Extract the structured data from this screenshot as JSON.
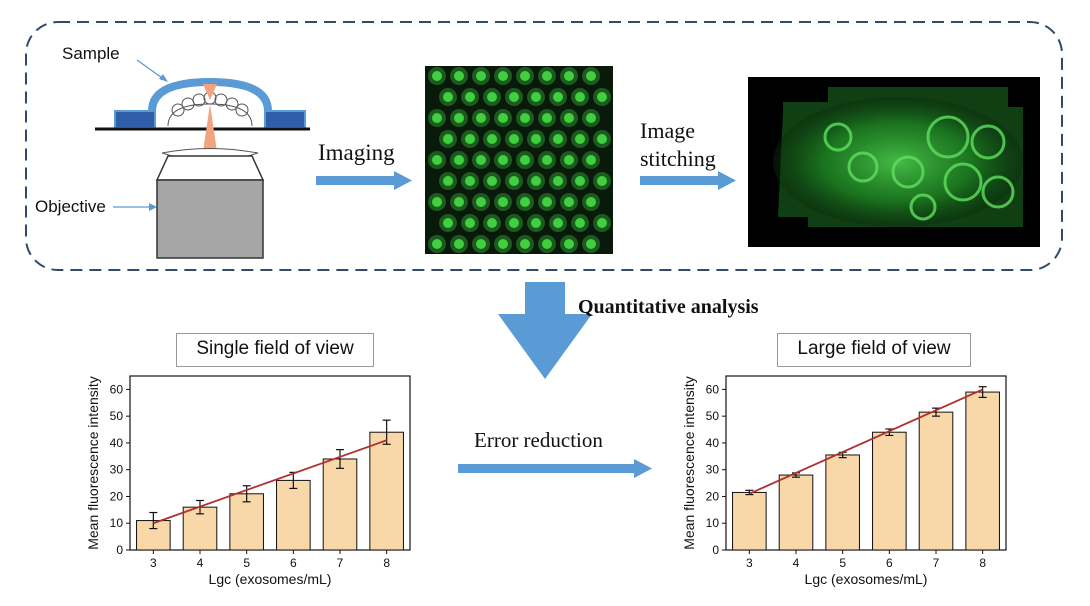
{
  "labels": {
    "sample": "Sample",
    "objective": "Objective",
    "imaging": "Imaging",
    "stitching_line1": "Image",
    "stitching_line2": "stitching",
    "quantitative": "Quantitative analysis",
    "error_reduction": "Error reduction",
    "single_title": "Single field of view",
    "large_title": "Large field of view"
  },
  "colors": {
    "arrow_blue": "#5b9bd5",
    "bar_fill": "#f8d7a8",
    "fit_line": "#b03030",
    "fluor_green": "#3fcf3f",
    "dish_blue": "#5b9bd5",
    "frame_dash": "#2f4a6b"
  },
  "chart_data": [
    {
      "type": "bar",
      "title": "Single field of view",
      "xlabel": "Lgc (exosomes/mL)",
      "ylabel": "Mean fluorescence intensity",
      "categories": [
        "3",
        "4",
        "5",
        "6",
        "7",
        "8"
      ],
      "values": [
        11,
        16,
        21,
        26,
        34,
        44
      ],
      "errors": [
        3,
        2.5,
        3,
        3,
        3.5,
        4.5
      ],
      "fit_line": [
        [
          3,
          10
        ],
        [
          8,
          41
        ]
      ],
      "ylim": [
        0,
        65
      ],
      "yticks": [
        "0",
        "10",
        "20",
        "30",
        "40",
        "50",
        "60"
      ]
    },
    {
      "type": "bar",
      "title": "Large field of view",
      "xlabel": "Lgc (exosomes/mL)",
      "ylabel": "Mean fluorescence intensity",
      "categories": [
        "3",
        "4",
        "5",
        "6",
        "7",
        "8"
      ],
      "values": [
        21.5,
        28,
        35.5,
        44,
        51.5,
        59
      ],
      "errors": [
        0.8,
        0.8,
        1,
        1.2,
        1.5,
        2
      ],
      "fit_line": [
        [
          3,
          21
        ],
        [
          8,
          60
        ]
      ],
      "ylim": [
        0,
        65
      ],
      "yticks": [
        "0",
        "10",
        "20",
        "30",
        "40",
        "50",
        "60"
      ]
    }
  ]
}
